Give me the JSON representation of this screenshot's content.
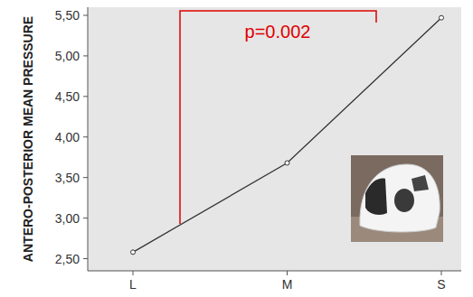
{
  "chart_data": {
    "type": "line",
    "y_label": "ANTERO-POSTERIOR MEAN PRESSURE",
    "annotation": "p=0.002",
    "categories": [
      "L",
      "M",
      "S"
    ],
    "values": [
      2.58,
      3.68,
      5.47
    ],
    "color": "#333333",
    "marker": "circle",
    "ylim": [
      2.35,
      5.6
    ],
    "yticks": [
      {
        "value": 2.5,
        "label": "2,50"
      },
      {
        "value": 3,
        "label": "3,00"
      },
      {
        "value": 3.5,
        "label": "3,50"
      },
      {
        "value": 4,
        "label": "4,00"
      },
      {
        "value": 4.5,
        "label": "4,50"
      },
      {
        "value": 5,
        "label": "5,00"
      },
      {
        "value": 5.5,
        "label": "5,50"
      }
    ],
    "grid": false
  }
}
